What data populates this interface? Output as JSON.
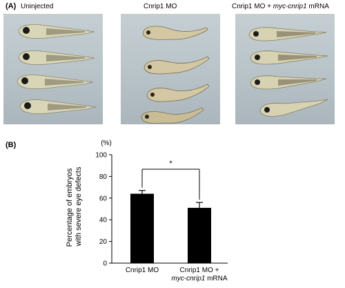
{
  "panel_a": {
    "label": "(A)",
    "columns": [
      {
        "title": "Uninjected"
      },
      {
        "title": "Cnrip1 MO"
      },
      {
        "title_prefix": "Cnrip1 MO + ",
        "title_italic": "myc-cnrip1",
        "title_suffix": " mRNA"
      }
    ]
  },
  "panel_b": {
    "label": "(B)",
    "unit_label": "(%)",
    "significance": "*"
  },
  "chart_data": {
    "type": "bar",
    "categories": [
      "Cnrip1 MO",
      "Cnrip1 MO + myc-cnrip1 mRNA"
    ],
    "category_lines": [
      [
        {
          "text": "Cnrip1 MO",
          "italic": false
        }
      ],
      [
        {
          "text": "Cnrip1 MO +",
          "italic": false
        },
        {
          "text": "myc-cnrip1",
          "italic": true,
          "suffix": " mRNA"
        }
      ]
    ],
    "values": [
      64,
      51
    ],
    "errors": [
      3,
      5
    ],
    "ylabel_lines": [
      "Percentage of embryos",
      "with severe eye defects"
    ],
    "ylim": [
      0,
      100
    ],
    "yticks": [
      0,
      20,
      40,
      60,
      80,
      100
    ],
    "bar_color": "#000000",
    "grid": false
  }
}
